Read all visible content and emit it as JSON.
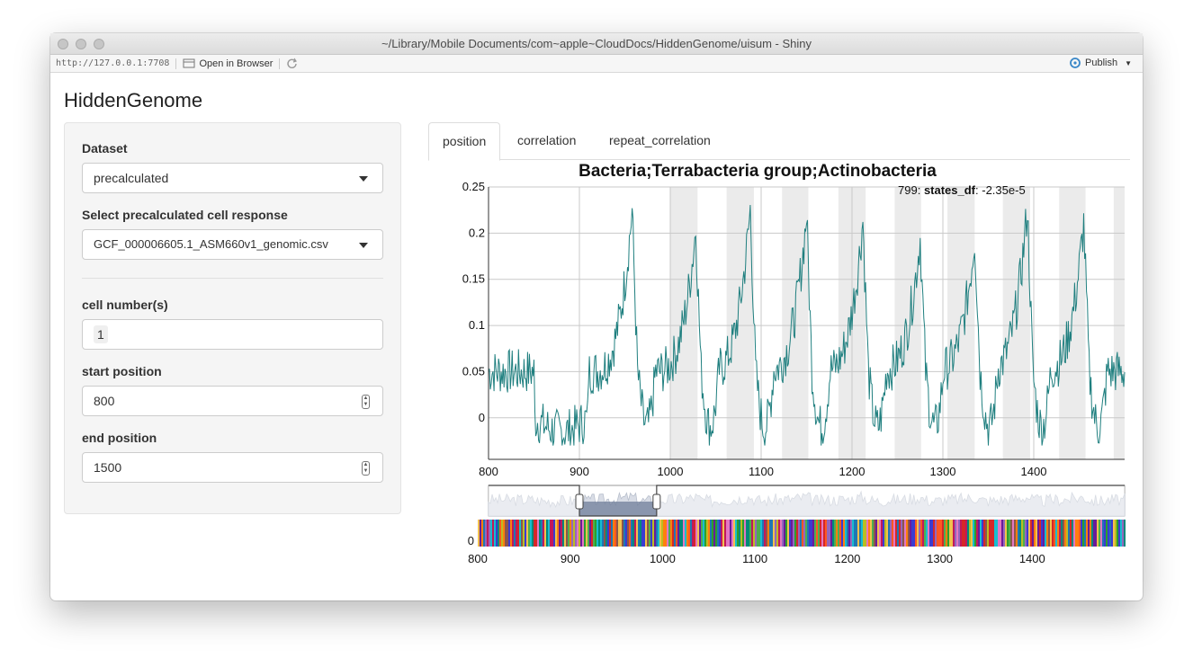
{
  "window": {
    "title": "~/Library/Mobile Documents/com~apple~CloudDocs/HiddenGenome/uisum - Shiny"
  },
  "toolbar": {
    "url": "http://127.0.0.1:7708",
    "open_in_browser": "Open in Browser",
    "publish": "Publish"
  },
  "app": {
    "title": "HiddenGenome",
    "dataset_label": "Dataset",
    "dataset_value": "precalculated",
    "cell_response_label": "Select precalculated cell response",
    "cell_response_value": "GCF_000006605.1_ASM660v1_genomic.csv",
    "cell_numbers_label": "cell number(s)",
    "cell_numbers_value": "1",
    "start_label": "start position",
    "start_value": "800",
    "end_label": "end position",
    "end_value": "1500"
  },
  "tabs": [
    "position",
    "correlation",
    "repeat_correlation"
  ],
  "active_tab": "position",
  "chart_data": {
    "type": "line",
    "title": "Bacteria;Terrabacteria group;Actinobacteria",
    "series_color": "#1f7f7f",
    "xlim": [
      800,
      1500
    ],
    "ylim": [
      -0.045,
      0.25
    ],
    "x_ticks": [
      800,
      900,
      1000,
      1100,
      1200,
      1300,
      1400
    ],
    "y_ticks": [
      0,
      0.05,
      0.1,
      0.15,
      0.2,
      0.25
    ],
    "y_tick_labels": [
      "0",
      "0.05",
      "0.1",
      "0.15",
      "0.2",
      "0.25"
    ],
    "legend": {
      "index": "799",
      "series": "states_df",
      "value": "-2.35e-5"
    },
    "shaded_regions": [
      [
        1000,
        1030
      ],
      [
        1062,
        1092
      ],
      [
        1123,
        1152
      ],
      [
        1185,
        1215
      ],
      [
        1247,
        1276
      ],
      [
        1305,
        1335
      ],
      [
        1366,
        1396
      ],
      [
        1428,
        1457
      ],
      [
        1488,
        1500
      ]
    ],
    "peaks": [
      {
        "x": 958,
        "y": 0.225
      },
      {
        "x": 1028,
        "y": 0.205
      },
      {
        "x": 1088,
        "y": 0.225
      },
      {
        "x": 1150,
        "y": 0.22
      },
      {
        "x": 1212,
        "y": 0.215
      },
      {
        "x": 1275,
        "y": 0.195
      },
      {
        "x": 1335,
        "y": 0.195
      },
      {
        "x": 1393,
        "y": 0.228
      },
      {
        "x": 1455,
        "y": 0.21
      }
    ],
    "range_selector": {
      "from": 900,
      "to": 985,
      "y_label": "0"
    },
    "genome_strip_ticks": [
      800,
      900,
      1000,
      1100,
      1200,
      1300,
      1400
    ]
  }
}
